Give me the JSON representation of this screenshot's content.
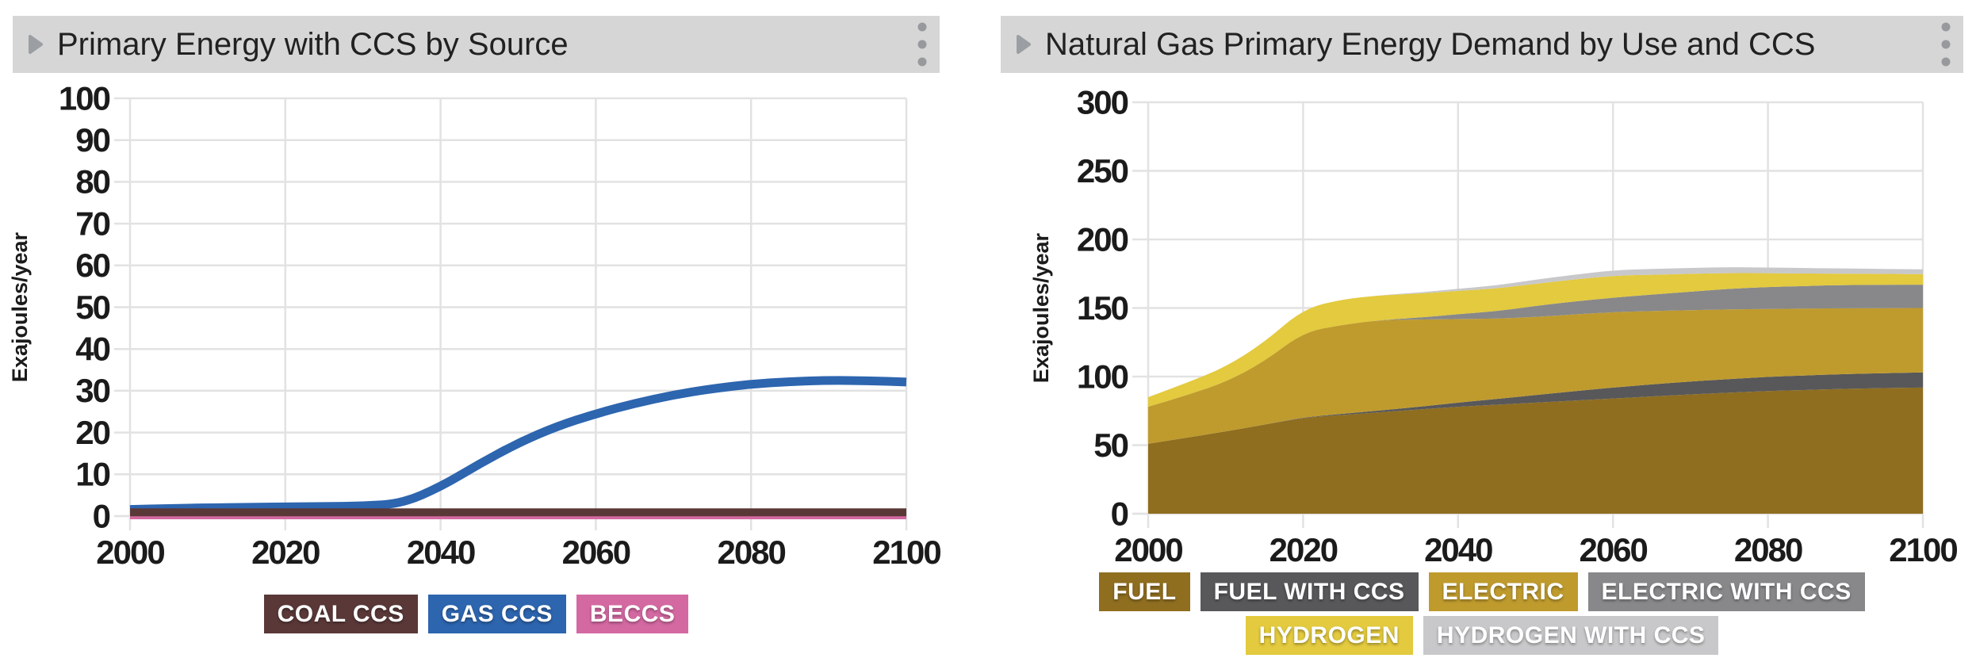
{
  "panels": [
    {
      "title": "Primary Energy with CCS by Source",
      "header_icons": {
        "collapse": "play-triangle",
        "menu": "kebab-menu"
      },
      "legend_rows": [
        [
          {
            "label": "COAL CCS",
            "color": "#5a3838"
          },
          {
            "label": "GAS CCS",
            "color": "#2d65af"
          },
          {
            "label": "BECCS",
            "color": "#d469a2"
          }
        ]
      ],
      "chart_data": {
        "type": "line",
        "title": "Primary Energy with CCS by Source",
        "xlabel": "",
        "ylabel": "Exajoules/year",
        "ylim": [
          0,
          100
        ],
        "ytick_step": 10,
        "yticks": [
          "0",
          "10",
          "20",
          "30",
          "40",
          "50",
          "60",
          "70",
          "80",
          "90",
          "100"
        ],
        "xticks": [
          2000,
          2020,
          2040,
          2060,
          2080,
          2100
        ],
        "grid": true,
        "legend_position": "bottom",
        "x": [
          2000,
          2005,
          2010,
          2015,
          2020,
          2025,
          2030,
          2035,
          2040,
          2045,
          2050,
          2055,
          2060,
          2065,
          2070,
          2075,
          2080,
          2085,
          2090,
          2095,
          2100
        ],
        "series": [
          {
            "name": "BECCS",
            "color": "#d469a2",
            "line_width": 10,
            "values": [
              0.2,
              0.2,
              0.2,
              0.2,
              0.2,
              0.2,
              0.2,
              0.2,
              0.2,
              0.2,
              0.2,
              0.2,
              0.2,
              0.2,
              0.2,
              0.2,
              0.2,
              0.2,
              0.2,
              0.2,
              0.2
            ]
          },
          {
            "name": "GAS CCS",
            "color": "#2d65af",
            "line_width": 11,
            "values": [
              1.6,
              1.8,
              2.0,
              2.1,
              2.2,
              2.3,
              2.4,
              3.0,
              7.0,
              12.5,
              17.5,
              21.5,
              24.5,
              27.0,
              29.0,
              30.5,
              31.6,
              32.2,
              32.5,
              32.4,
              32.1
            ]
          },
          {
            "name": "COAL CCS",
            "color": "#5a3838",
            "line_width": 10,
            "values": [
              0.9,
              0.9,
              0.9,
              0.9,
              0.9,
              0.9,
              0.9,
              0.9,
              0.9,
              0.9,
              0.9,
              0.9,
              0.9,
              0.9,
              0.9,
              0.9,
              0.9,
              0.9,
              0.9,
              0.9,
              0.9
            ]
          }
        ]
      }
    },
    {
      "title": "Natural Gas Primary Energy Demand by Use and CCS",
      "header_icons": {
        "collapse": "play-triangle",
        "menu": "kebab-menu"
      },
      "legend_rows": [
        [
          {
            "label": "FUEL",
            "color": "#8f6e20"
          },
          {
            "label": "FUEL WITH CCS",
            "color": "#58585a"
          },
          {
            "label": "ELECTRIC",
            "color": "#bf9b2e"
          },
          {
            "label": "ELECTRIC WITH CCS",
            "color": "#88888a"
          }
        ],
        [
          {
            "label": "HYDROGEN",
            "color": "#e3ca3e"
          },
          {
            "label": "HYDROGEN WITH CCS",
            "color": "#c8c8ca"
          }
        ]
      ],
      "chart_data": {
        "type": "area",
        "title": "Natural Gas Primary Energy Demand by Use and CCS",
        "xlabel": "",
        "ylabel": "Exajoules/year",
        "ylim": [
          0,
          300
        ],
        "ytick_step": 50,
        "yticks": [
          "0",
          "50",
          "100",
          "150",
          "200",
          "250",
          "300"
        ],
        "xticks": [
          2000,
          2020,
          2040,
          2060,
          2080,
          2100
        ],
        "grid": true,
        "legend_position": "bottom",
        "stacking": "bottom-to-top",
        "x": [
          2000,
          2005,
          2010,
          2015,
          2020,
          2025,
          2030,
          2035,
          2040,
          2045,
          2050,
          2055,
          2060,
          2065,
          2070,
          2075,
          2080,
          2085,
          2090,
          2095,
          2100
        ],
        "series": [
          {
            "name": "FUEL",
            "color": "#8f6e20",
            "values": [
              51,
              55.5,
              60,
              65,
              70,
              72,
              74,
              76,
              78,
              79.5,
              81,
              82.5,
              84,
              85.5,
              87,
              88.3,
              89.5,
              90.3,
              91,
              91.6,
              92
            ]
          },
          {
            "name": "FUEL WITH CCS",
            "color": "#58585a",
            "values": [
              0,
              0,
              0,
              0,
              0.3,
              0.8,
              1.3,
              2,
              3,
              4.2,
              5.5,
              6.8,
              8,
              8.8,
              9.4,
              9.9,
              10.3,
              10.6,
              10.8,
              10.9,
              11
            ]
          },
          {
            "name": "ELECTRIC",
            "color": "#bf9b2e",
            "values": [
              27,
              31,
              36,
              46,
              62,
              65,
              66,
              63.5,
              61,
              58.5,
              57,
              56,
              55,
              53.5,
              52,
              50.8,
              49.5,
              48.7,
              48,
              47.4,
              47
            ]
          },
          {
            "name": "ELECTRIC WITH CCS",
            "color": "#88888a",
            "values": [
              0,
              0,
              0,
              0,
              0,
              0,
              0,
              1.5,
              3.5,
              5.5,
              8,
              9.5,
              10.5,
              12,
              13.5,
              15,
              16,
              16.5,
              17,
              17,
              17
            ]
          },
          {
            "name": "HYDROGEN",
            "color": "#e3ca3e",
            "values": [
              7,
              9,
              11,
              14,
              17,
              18.5,
              18,
              17.5,
              17,
              16.5,
              16.2,
              16,
              16,
              14.5,
              13,
              11.5,
              10,
              9,
              8.3,
              8,
              7.7
            ]
          },
          {
            "name": "HYDROGEN WITH CCS",
            "color": "#c8c8ca",
            "values": [
              0,
              0,
              0,
              0,
              0,
              0,
              0,
              0.8,
              1.5,
              2.3,
              3,
              3.5,
              4,
              4.2,
              4.3,
              4.3,
              4.2,
              4,
              3.8,
              3.6,
              3.5
            ]
          }
        ]
      }
    }
  ]
}
